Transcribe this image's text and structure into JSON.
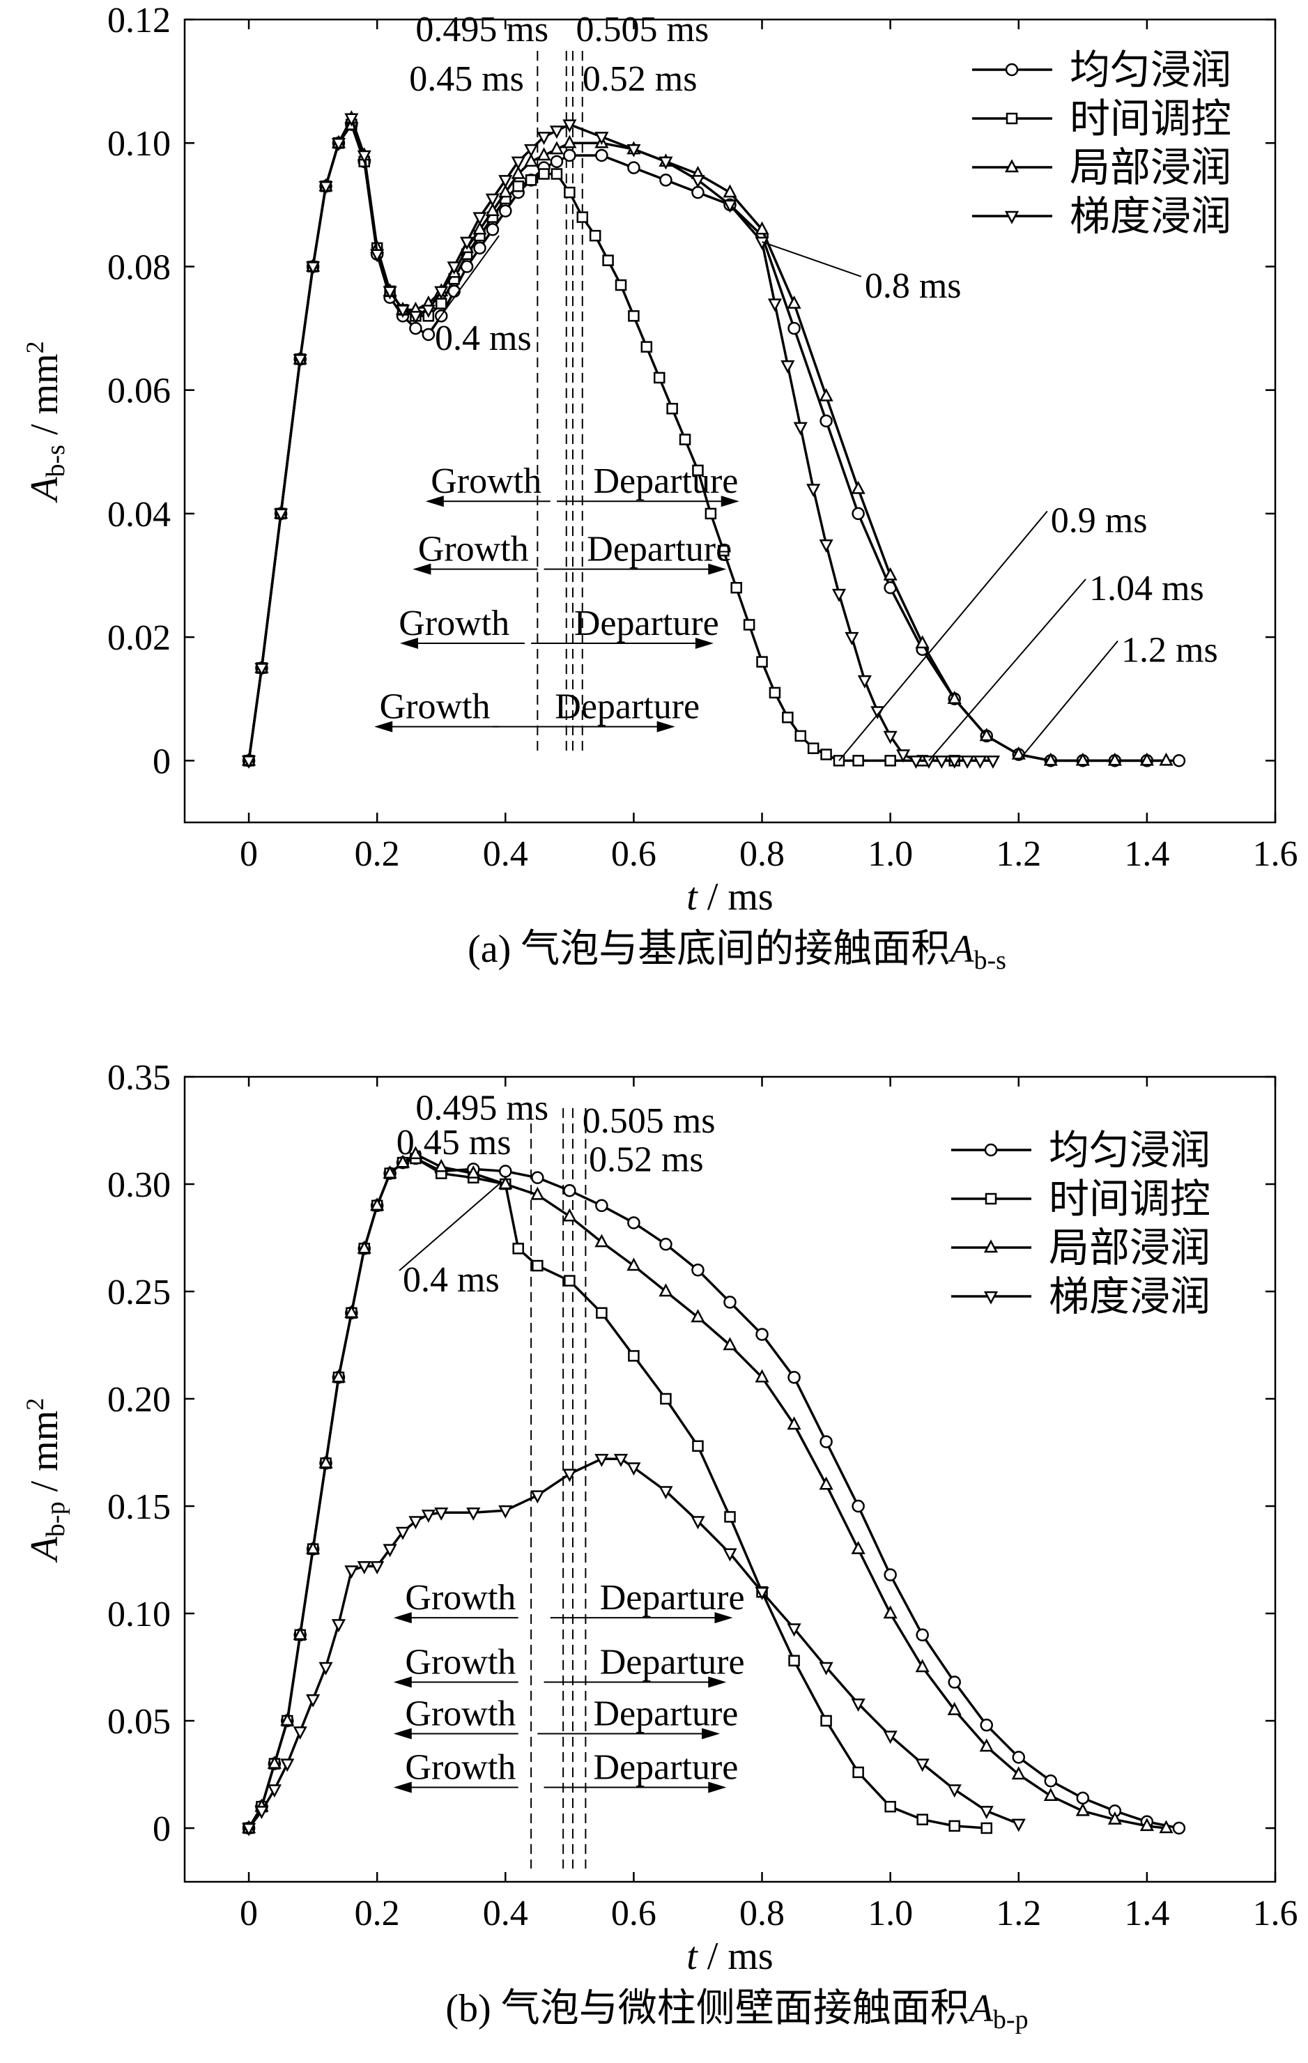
{
  "chart_data": [
    {
      "type": "line",
      "caption": "(a) 气泡与基底间的接触面积",
      "caption_symbol": "A",
      "caption_subscript": "b-s",
      "xlabel_var": "t",
      "xlabel_unit": "/ ms",
      "ylabel_var": "A",
      "ylabel_sub": "b-s",
      "ylabel_unit": "/ mm",
      "ylabel_sup": "2",
      "xlim": [
        -0.1,
        1.6
      ],
      "ylim": [
        -0.01,
        0.12
      ],
      "x_ticks": [
        "0",
        "0.2",
        "0.4",
        "0.6",
        "0.8",
        "1.0",
        "1.2",
        "1.4",
        "1.6"
      ],
      "x_tick_values": [
        0,
        0.2,
        0.4,
        0.6,
        0.8,
        1.0,
        1.2,
        1.4,
        1.6
      ],
      "y_ticks": [
        "0",
        "0.02",
        "0.04",
        "0.06",
        "0.08",
        "0.10",
        "0.12"
      ],
      "y_tick_values": [
        0,
        0.02,
        0.04,
        0.06,
        0.08,
        0.1,
        0.12
      ],
      "grid": false,
      "legend_position": "top-right",
      "series": [
        {
          "name": "均匀浸润",
          "marker": "circle",
          "x": [
            0,
            0.02,
            0.05,
            0.08,
            0.1,
            0.12,
            0.14,
            0.16,
            0.18,
            0.2,
            0.22,
            0.24,
            0.26,
            0.28,
            0.3,
            0.32,
            0.34,
            0.36,
            0.38,
            0.4,
            0.42,
            0.44,
            0.46,
            0.48,
            0.5,
            0.55,
            0.6,
            0.65,
            0.7,
            0.75,
            0.8,
            0.85,
            0.9,
            0.95,
            1.0,
            1.05,
            1.1,
            1.15,
            1.2,
            1.25,
            1.3,
            1.35,
            1.4,
            1.45
          ],
          "y": [
            0,
            0.015,
            0.04,
            0.065,
            0.08,
            0.093,
            0.1,
            0.103,
            0.097,
            0.082,
            0.075,
            0.072,
            0.07,
            0.069,
            0.072,
            0.076,
            0.08,
            0.083,
            0.086,
            0.089,
            0.092,
            0.094,
            0.096,
            0.097,
            0.098,
            0.098,
            0.096,
            0.094,
            0.092,
            0.09,
            0.085,
            0.07,
            0.055,
            0.04,
            0.028,
            0.018,
            0.01,
            0.004,
            0.001,
            0,
            0,
            0,
            0,
            0
          ]
        },
        {
          "name": "时间调控",
          "marker": "square",
          "x": [
            0,
            0.02,
            0.05,
            0.08,
            0.1,
            0.12,
            0.14,
            0.16,
            0.18,
            0.2,
            0.22,
            0.24,
            0.26,
            0.28,
            0.3,
            0.32,
            0.34,
            0.36,
            0.38,
            0.4,
            0.42,
            0.44,
            0.46,
            0.48,
            0.5,
            0.52,
            0.54,
            0.56,
            0.58,
            0.6,
            0.62,
            0.64,
            0.66,
            0.68,
            0.7,
            0.72,
            0.74,
            0.76,
            0.78,
            0.8,
            0.82,
            0.84,
            0.86,
            0.88,
            0.9,
            0.92,
            0.95,
            1.0,
            1.05,
            1.1
          ],
          "y": [
            0,
            0.015,
            0.04,
            0.065,
            0.08,
            0.093,
            0.1,
            0.103,
            0.097,
            0.083,
            0.076,
            0.073,
            0.072,
            0.072,
            0.074,
            0.078,
            0.082,
            0.085,
            0.088,
            0.091,
            0.093,
            0.094,
            0.095,
            0.095,
            0.092,
            0.088,
            0.085,
            0.081,
            0.077,
            0.072,
            0.067,
            0.062,
            0.057,
            0.052,
            0.047,
            0.04,
            0.034,
            0.028,
            0.022,
            0.016,
            0.011,
            0.007,
            0.004,
            0.002,
            0.001,
            0,
            0,
            0,
            0,
            0
          ]
        },
        {
          "name": "局部浸润",
          "marker": "triangle-up",
          "x": [
            0,
            0.02,
            0.05,
            0.08,
            0.1,
            0.12,
            0.14,
            0.16,
            0.18,
            0.2,
            0.22,
            0.24,
            0.26,
            0.28,
            0.3,
            0.32,
            0.34,
            0.36,
            0.38,
            0.4,
            0.42,
            0.44,
            0.46,
            0.48,
            0.5,
            0.55,
            0.6,
            0.65,
            0.7,
            0.75,
            0.8,
            0.85,
            0.9,
            0.95,
            1.0,
            1.05,
            1.1,
            1.15,
            1.2,
            1.25,
            1.3,
            1.35,
            1.4,
            1.43
          ],
          "y": [
            0,
            0.015,
            0.04,
            0.065,
            0.08,
            0.093,
            0.1,
            0.104,
            0.098,
            0.083,
            0.076,
            0.073,
            0.073,
            0.074,
            0.076,
            0.079,
            0.083,
            0.086,
            0.089,
            0.092,
            0.095,
            0.097,
            0.098,
            0.099,
            0.1,
            0.1,
            0.099,
            0.097,
            0.095,
            0.092,
            0.086,
            0.074,
            0.059,
            0.044,
            0.03,
            0.019,
            0.01,
            0.004,
            0.001,
            0,
            0,
            0,
            0,
            0
          ]
        },
        {
          "name": "梯度浸润",
          "marker": "triangle-down",
          "x": [
            0,
            0.02,
            0.05,
            0.08,
            0.1,
            0.12,
            0.14,
            0.16,
            0.18,
            0.2,
            0.22,
            0.24,
            0.26,
            0.28,
            0.3,
            0.32,
            0.34,
            0.36,
            0.38,
            0.4,
            0.42,
            0.44,
            0.46,
            0.48,
            0.5,
            0.55,
            0.6,
            0.65,
            0.7,
            0.75,
            0.8,
            0.82,
            0.84,
            0.86,
            0.88,
            0.9,
            0.92,
            0.94,
            0.96,
            0.98,
            1.0,
            1.02,
            1.04,
            1.06,
            1.08,
            1.1,
            1.12,
            1.14,
            1.16
          ],
          "y": [
            0,
            0.015,
            0.04,
            0.065,
            0.08,
            0.093,
            0.1,
            0.104,
            0.098,
            0.082,
            0.076,
            0.073,
            0.072,
            0.073,
            0.076,
            0.08,
            0.084,
            0.088,
            0.091,
            0.094,
            0.097,
            0.099,
            0.101,
            0.102,
            0.103,
            0.101,
            0.099,
            0.097,
            0.094,
            0.09,
            0.084,
            0.074,
            0.064,
            0.054,
            0.044,
            0.035,
            0.027,
            0.02,
            0.013,
            0.008,
            0.004,
            0.001,
            0,
            0,
            0,
            0,
            0,
            0,
            0
          ]
        }
      ],
      "dashed_lines": [
        {
          "x": 0.45
        },
        {
          "x": 0.495
        },
        {
          "x": 0.505
        },
        {
          "x": 0.52
        }
      ],
      "annotations": [
        {
          "text": "0.495 ms",
          "x": 0.26,
          "y": 0.1165
        },
        {
          "text": "0.505 ms",
          "x": 0.51,
          "y": 0.1165
        },
        {
          "text": "0.45 ms",
          "x": 0.25,
          "y": 0.1085
        },
        {
          "text": "0.52 ms",
          "x": 0.52,
          "y": 0.1085
        },
        {
          "text": "0.4 ms",
          "x": 0.29,
          "y": 0.0665,
          "line_to": [
            0.39,
            0.085
          ]
        },
        {
          "text": "0.8 ms",
          "x": 0.96,
          "y": 0.075,
          "line_to": [
            0.8,
            0.084
          ]
        },
        {
          "text": "0.9 ms",
          "x": 1.25,
          "y": 0.037,
          "line_to": [
            0.92,
            0.0
          ]
        },
        {
          "text": "1.04 ms",
          "x": 1.31,
          "y": 0.026,
          "line_to": [
            1.06,
            0.0
          ]
        },
        {
          "text": "1.2 ms",
          "x": 1.36,
          "y": 0.016,
          "line_to": [
            1.2,
            0.0
          ]
        }
      ],
      "arrows": [
        {
          "growth": "Growth",
          "departure": "Departure",
          "y": 0.042,
          "gx": 0.3,
          "dx": 0.58,
          "growth_label_x": 0.37,
          "departure_label_x": 0.65
        },
        {
          "growth": "Growth",
          "departure": "Departure",
          "y": 0.031,
          "gx": 0.28,
          "dx": 0.56,
          "growth_label_x": 0.35,
          "departure_label_x": 0.64
        },
        {
          "growth": "Growth",
          "departure": "Departure",
          "y": 0.019,
          "gx": 0.26,
          "dx": 0.54,
          "growth_label_x": 0.32,
          "departure_label_x": 0.62
        },
        {
          "growth": "Growth",
          "departure": "Departure",
          "y": 0.0055,
          "gx": 0.22,
          "dx": 0.48,
          "growth_label_x": 0.29,
          "departure_label_x": 0.59
        }
      ]
    },
    {
      "type": "line",
      "caption": "(b) 气泡与微柱侧壁面接触面积",
      "caption_symbol": "A",
      "caption_subscript": "b-p",
      "xlabel_var": "t",
      "xlabel_unit": "/ ms",
      "ylabel_var": "A",
      "ylabel_sub": "b-p",
      "ylabel_unit": "/ mm",
      "ylabel_sup": "2",
      "xlim": [
        -0.1,
        1.6
      ],
      "ylim": [
        -0.025,
        0.35
      ],
      "x_ticks": [
        "0",
        "0.2",
        "0.4",
        "0.6",
        "0.8",
        "1.0",
        "1.2",
        "1.4",
        "1.6"
      ],
      "x_tick_values": [
        0,
        0.2,
        0.4,
        0.6,
        0.8,
        1.0,
        1.2,
        1.4,
        1.6
      ],
      "y_ticks": [
        "0",
        "0.05",
        "0.10",
        "0.15",
        "0.20",
        "0.25",
        "0.30",
        "0.35"
      ],
      "y_tick_values": [
        0,
        0.05,
        0.1,
        0.15,
        0.2,
        0.25,
        0.3,
        0.35
      ],
      "grid": false,
      "legend_position": "top-right",
      "series": [
        {
          "name": "均匀浸润",
          "marker": "circle",
          "x": [
            0,
            0.02,
            0.04,
            0.06,
            0.08,
            0.1,
            0.12,
            0.14,
            0.16,
            0.18,
            0.2,
            0.22,
            0.24,
            0.26,
            0.3,
            0.35,
            0.4,
            0.45,
            0.5,
            0.55,
            0.6,
            0.65,
            0.7,
            0.75,
            0.8,
            0.85,
            0.9,
            0.95,
            1.0,
            1.05,
            1.1,
            1.15,
            1.2,
            1.25,
            1.3,
            1.35,
            1.4,
            1.45
          ],
          "y": [
            0,
            0.01,
            0.03,
            0.05,
            0.09,
            0.13,
            0.17,
            0.21,
            0.24,
            0.27,
            0.29,
            0.305,
            0.31,
            0.312,
            0.306,
            0.307,
            0.306,
            0.303,
            0.297,
            0.29,
            0.282,
            0.272,
            0.26,
            0.245,
            0.23,
            0.21,
            0.18,
            0.15,
            0.118,
            0.09,
            0.068,
            0.048,
            0.033,
            0.022,
            0.014,
            0.008,
            0.003,
            0
          ]
        },
        {
          "name": "时间调控",
          "marker": "square",
          "x": [
            0,
            0.02,
            0.04,
            0.06,
            0.08,
            0.1,
            0.12,
            0.14,
            0.16,
            0.18,
            0.2,
            0.22,
            0.24,
            0.26,
            0.3,
            0.35,
            0.4,
            0.42,
            0.45,
            0.5,
            0.55,
            0.6,
            0.65,
            0.7,
            0.75,
            0.8,
            0.85,
            0.9,
            0.95,
            1.0,
            1.05,
            1.1,
            1.15
          ],
          "y": [
            0,
            0.01,
            0.03,
            0.05,
            0.09,
            0.13,
            0.17,
            0.21,
            0.24,
            0.27,
            0.29,
            0.305,
            0.31,
            0.312,
            0.305,
            0.303,
            0.3,
            0.27,
            0.262,
            0.255,
            0.24,
            0.22,
            0.2,
            0.178,
            0.145,
            0.11,
            0.078,
            0.05,
            0.026,
            0.01,
            0.004,
            0.001,
            0
          ]
        },
        {
          "name": "局部浸润",
          "marker": "triangle-up",
          "x": [
            0,
            0.02,
            0.04,
            0.06,
            0.08,
            0.1,
            0.12,
            0.14,
            0.16,
            0.18,
            0.2,
            0.22,
            0.24,
            0.26,
            0.3,
            0.35,
            0.4,
            0.45,
            0.5,
            0.55,
            0.6,
            0.65,
            0.7,
            0.75,
            0.8,
            0.85,
            0.9,
            0.95,
            1.0,
            1.05,
            1.1,
            1.15,
            1.2,
            1.25,
            1.3,
            1.35,
            1.4,
            1.43
          ],
          "y": [
            0,
            0.01,
            0.03,
            0.05,
            0.09,
            0.13,
            0.17,
            0.21,
            0.24,
            0.27,
            0.29,
            0.305,
            0.31,
            0.314,
            0.308,
            0.305,
            0.3,
            0.295,
            0.285,
            0.273,
            0.262,
            0.25,
            0.238,
            0.225,
            0.21,
            0.188,
            0.16,
            0.13,
            0.1,
            0.075,
            0.055,
            0.038,
            0.025,
            0.015,
            0.008,
            0.004,
            0.001,
            0
          ]
        },
        {
          "name": "梯度浸润",
          "marker": "triangle-down",
          "x": [
            0,
            0.02,
            0.04,
            0.06,
            0.08,
            0.1,
            0.12,
            0.14,
            0.16,
            0.18,
            0.2,
            0.22,
            0.24,
            0.26,
            0.28,
            0.3,
            0.35,
            0.4,
            0.45,
            0.5,
            0.55,
            0.58,
            0.6,
            0.65,
            0.7,
            0.75,
            0.8,
            0.85,
            0.9,
            0.95,
            1.0,
            1.05,
            1.1,
            1.15,
            1.2
          ],
          "y": [
            0,
            0.008,
            0.018,
            0.03,
            0.045,
            0.06,
            0.075,
            0.095,
            0.12,
            0.122,
            0.122,
            0.13,
            0.138,
            0.143,
            0.146,
            0.147,
            0.147,
            0.148,
            0.155,
            0.165,
            0.172,
            0.172,
            0.168,
            0.157,
            0.143,
            0.128,
            0.11,
            0.093,
            0.075,
            0.058,
            0.043,
            0.03,
            0.018,
            0.008,
            0.002
          ]
        }
      ],
      "dashed_lines": [
        {
          "x": 0.44
        },
        {
          "x": 0.49
        },
        {
          "x": 0.505
        },
        {
          "x": 0.525
        }
      ],
      "annotations": [
        {
          "text": "0.495 ms",
          "x": 0.26,
          "y": 0.33
        },
        {
          "text": "0.505 ms",
          "x": 0.52,
          "y": 0.324
        },
        {
          "text": "0.45 ms",
          "x": 0.23,
          "y": 0.314
        },
        {
          "text": "0.52 ms",
          "x": 0.53,
          "y": 0.306
        },
        {
          "text": "0.4 ms",
          "x": 0.24,
          "y": 0.25,
          "line_to": [
            0.39,
            0.3
          ]
        }
      ],
      "arrows": [
        {
          "growth": "Growth",
          "departure": "Departure",
          "y": 0.098,
          "gx": 0.25,
          "dx": 0.57,
          "growth_label_x": 0.33,
          "departure_label_x": 0.66
        },
        {
          "growth": "Growth",
          "departure": "Departure",
          "y": 0.068,
          "gx": 0.25,
          "dx": 0.56,
          "growth_label_x": 0.33,
          "departure_label_x": 0.66
        },
        {
          "growth": "Growth",
          "departure": "Departure",
          "y": 0.044,
          "gx": 0.25,
          "dx": 0.55,
          "growth_label_x": 0.33,
          "departure_label_x": 0.65
        },
        {
          "growth": "Growth",
          "departure": "Departure",
          "y": 0.019,
          "gx": 0.25,
          "dx": 0.56,
          "growth_label_x": 0.33,
          "departure_label_x": 0.65
        }
      ]
    }
  ]
}
